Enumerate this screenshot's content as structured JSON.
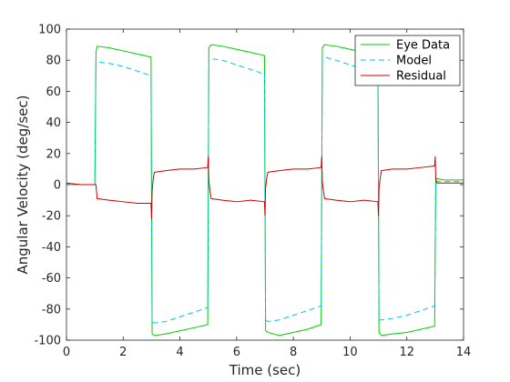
{
  "chart_data": {
    "type": "line",
    "xlabel": "Time (sec)",
    "ylabel": "Angular  Velocity  (deg/sec)",
    "xlim": [
      0,
      14
    ],
    "ylim": [
      -100,
      100
    ],
    "xticks": [
      0,
      2,
      4,
      6,
      8,
      10,
      12,
      14
    ],
    "yticks": [
      -100,
      -80,
      -60,
      -40,
      -20,
      0,
      20,
      40,
      60,
      80,
      100
    ],
    "grid": false,
    "legend": "top-right",
    "series": [
      {
        "name": "Eye Data",
        "color": "#00cc00",
        "style": "solid",
        "x": [
          0,
          0.5,
          1.0,
          1.04,
          1.08,
          1.5,
          2.0,
          2.5,
          2.98,
          3.02,
          3.1,
          3.5,
          4.0,
          4.5,
          4.98,
          5.02,
          5.1,
          5.5,
          6.0,
          6.5,
          6.98,
          7.02,
          7.1,
          7.5,
          8.0,
          8.5,
          8.98,
          9.02,
          9.1,
          9.5,
          10.0,
          10.5,
          10.98,
          11.02,
          11.1,
          11.5,
          12.0,
          12.5,
          12.98,
          13.02,
          13.3,
          14.0
        ],
        "y": [
          0,
          0,
          0,
          85,
          89,
          88,
          86,
          84,
          82,
          -96,
          -97,
          -96,
          -94,
          -92,
          -90,
          88,
          90,
          89,
          87,
          85,
          83,
          -94,
          -95,
          -97,
          -95,
          -93,
          -90,
          88,
          90,
          89,
          87,
          85,
          83,
          -95,
          -97,
          -96,
          -95,
          -93,
          -91,
          4,
          3,
          3
        ]
      },
      {
        "name": "Model",
        "color": "#00c8e6",
        "style": "dashed",
        "x": [
          0,
          1.0,
          1.04,
          1.5,
          2.0,
          2.5,
          2.98,
          3.02,
          3.1,
          3.5,
          4.0,
          4.5,
          4.98,
          5.02,
          5.1,
          5.5,
          6.0,
          6.5,
          6.98,
          7.02,
          7.1,
          7.5,
          8.0,
          8.5,
          8.98,
          9.02,
          9.1,
          9.5,
          10.0,
          10.5,
          10.98,
          11.02,
          11.1,
          11.5,
          12.0,
          12.5,
          12.98,
          13.02,
          13.3,
          14.0
        ],
        "y": [
          0,
          0,
          79,
          78,
          76,
          73,
          70,
          -88,
          -89,
          -88,
          -85,
          -82,
          -79,
          80,
          81,
          80,
          77,
          74,
          71,
          -87,
          -88,
          -87,
          -84,
          -81,
          -78,
          81,
          82,
          80,
          77,
          74,
          71,
          -87,
          -87,
          -86,
          -84,
          -81,
          -78,
          2,
          2,
          2
        ]
      },
      {
        "name": "Residual",
        "color": "#cc0000",
        "style": "solid",
        "x": [
          0,
          0.5,
          1.0,
          1.04,
          1.08,
          1.5,
          2.0,
          2.5,
          2.98,
          3.0,
          3.02,
          3.06,
          3.1,
          3.5,
          4.0,
          4.5,
          4.98,
          5.0,
          5.02,
          5.06,
          5.1,
          5.5,
          6.0,
          6.5,
          6.98,
          7.0,
          7.02,
          7.06,
          7.1,
          7.5,
          8.0,
          8.5,
          8.98,
          9.0,
          9.02,
          9.06,
          9.1,
          9.5,
          10.0,
          10.5,
          10.98,
          11.0,
          11.02,
          11.06,
          11.1,
          11.5,
          12.0,
          12.5,
          12.98,
          13.0,
          13.02,
          13.06,
          13.3,
          14.0
        ],
        "y": [
          1,
          0,
          0,
          0,
          -9,
          -10,
          -11,
          -12,
          -12,
          -22,
          -4,
          4,
          8,
          9,
          10,
          10,
          11,
          18,
          2,
          -4,
          -9,
          -10,
          -11,
          -10,
          -11,
          -20,
          -2,
          4,
          8,
          9,
          10,
          10,
          11,
          18,
          2,
          -4,
          -9,
          -10,
          -11,
          -10,
          -11,
          -20,
          -2,
          4,
          9,
          10,
          10,
          11,
          12,
          18,
          4,
          1,
          1,
          1
        ]
      }
    ]
  }
}
